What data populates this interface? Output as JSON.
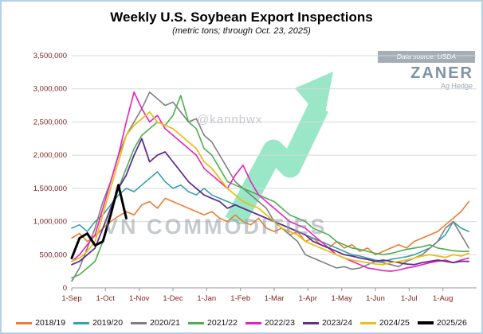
{
  "header": {
    "title": "Weekly U.S. Soybean Export Inspections",
    "subtitle": "(metric tons; through Oct. 23, 2025)"
  },
  "branding": {
    "data_source": "Data source: USDA",
    "logo": "ZANER",
    "logo_sub": "Ag Hedge",
    "logo_color": "#7e93a6"
  },
  "watermarks": {
    "handle": "@kannbwx",
    "brand": "VN COMMODITIES",
    "arrow_color": "#35d08e"
  },
  "chart_data": {
    "type": "line",
    "title": "Weekly U.S. Soybean Export Inspections",
    "subtitle": "(metric tons; through Oct. 23, 2025)",
    "xlabel": "",
    "ylabel": "metric tons",
    "ylim": [
      0,
      3500000
    ],
    "y_tick_step": 500000,
    "grid": true,
    "legend_position": "bottom",
    "axis_label_color": "#7f1f1f",
    "grid_color": "#d9d9d9",
    "x_weeks_total": 52,
    "x_tick_labels": [
      "1-Sep",
      "1-Oct",
      "1-Nov",
      "1-Dec",
      "1-Jan",
      "1-Feb",
      "1-Mar",
      "1-Apr",
      "1-May",
      "1-Jun",
      "1-Jul",
      "1-Aug"
    ],
    "x_tick_positions": [
      0,
      4.33,
      8.67,
      13,
      17.33,
      21.67,
      26,
      30.33,
      34.67,
      39,
      43.33,
      47.67
    ],
    "series": [
      {
        "name": "2018/19",
        "color": "#ED7D31",
        "width": 1.6,
        "values": [
          750000,
          820000,
          700000,
          780000,
          900000,
          1000000,
          1080000,
          1150000,
          1100000,
          1250000,
          1300000,
          1200000,
          1350000,
          1300000,
          1250000,
          1200000,
          1150000,
          1100000,
          1150000,
          1050000,
          1000000,
          1100000,
          1000000,
          950000,
          1050000,
          900000,
          850000,
          900000,
          800000,
          850000,
          700000,
          750000,
          650000,
          600000,
          700000,
          600000,
          650000,
          550000,
          600000,
          500000,
          550000,
          600000,
          650000,
          600000,
          700000,
          750000,
          800000,
          850000,
          950000,
          1050000,
          1150000,
          1300000
        ]
      },
      {
        "name": "2019/20",
        "color": "#35A0AE",
        "width": 1.6,
        "values": [
          900000,
          950000,
          850000,
          1000000,
          1100000,
          1250000,
          1400000,
          1500000,
          1450000,
          1550000,
          1650000,
          1750000,
          1600000,
          1500000,
          1550000,
          1450000,
          1400000,
          1500000,
          1400000,
          1350000,
          1300000,
          1250000,
          1200000,
          1150000,
          1100000,
          1050000,
          1000000,
          950000,
          900000,
          850000,
          800000,
          750000,
          700000,
          650000,
          600000,
          550000,
          500000,
          480000,
          450000,
          420000,
          400000,
          430000,
          450000,
          470000,
          500000,
          550000,
          600000,
          700000,
          800000,
          1000000,
          900000,
          850000
        ]
      },
      {
        "name": "2020/21",
        "color": "#7F7F7F",
        "width": 1.6,
        "values": [
          100000,
          300000,
          600000,
          900000,
          1300000,
          1600000,
          2000000,
          2300000,
          2500000,
          2700000,
          2950000,
          2850000,
          2750000,
          2800000,
          2650000,
          2500000,
          2550000,
          2300000,
          2200000,
          2000000,
          1800000,
          1600000,
          1500000,
          1400000,
          1300000,
          1200000,
          1000000,
          900000,
          800000,
          700000,
          500000,
          450000,
          400000,
          350000,
          300000,
          320000,
          280000,
          300000,
          350000,
          400000,
          380000,
          350000,
          320000,
          400000,
          450000,
          500000,
          600000,
          700000,
          900000,
          1000000,
          800000,
          600000
        ]
      },
      {
        "name": "2021/22",
        "color": "#4CAF50",
        "width": 1.6,
        "values": [
          150000,
          200000,
          300000,
          400000,
          700000,
          1100000,
          1500000,
          1800000,
          2100000,
          2300000,
          2400000,
          2500000,
          2450000,
          2600000,
          2900000,
          2500000,
          2400000,
          2100000,
          2000000,
          1800000,
          1600000,
          1550000,
          1500000,
          1450000,
          1400000,
          1350000,
          1300000,
          1200000,
          1100000,
          1050000,
          1000000,
          900000,
          850000,
          800000,
          700000,
          650000,
          600000,
          580000,
          550000,
          520000,
          500000,
          520000,
          550000,
          580000,
          600000,
          620000,
          650000,
          600000,
          580000,
          560000,
          550000,
          550000
        ]
      },
      {
        "name": "2022/23",
        "color": "#E91FC0",
        "width": 1.6,
        "values": [
          400000,
          500000,
          650000,
          800000,
          1200000,
          1600000,
          2000000,
          2500000,
          2950000,
          2700000,
          2500000,
          2600000,
          2400000,
          2300000,
          2200000,
          2100000,
          2000000,
          1800000,
          1700000,
          1600000,
          1500000,
          1700000,
          1850000,
          1600000,
          1400000,
          1300000,
          1200000,
          1100000,
          1000000,
          950000,
          900000,
          800000,
          700000,
          600000,
          500000,
          450000,
          400000,
          350000,
          300000,
          280000,
          260000,
          250000,
          270000,
          300000,
          320000,
          350000,
          380000,
          400000,
          420000,
          380000,
          420000,
          450000
        ]
      },
      {
        "name": "2023/24",
        "color": "#5F2E8E",
        "width": 1.8,
        "values": [
          350000,
          400000,
          500000,
          600000,
          900000,
          1200000,
          1500000,
          1700000,
          2000000,
          2250000,
          1900000,
          2000000,
          2050000,
          1900000,
          1750000,
          1600000,
          1500000,
          1400000,
          1350000,
          1300000,
          1200000,
          1250000,
          1200000,
          1150000,
          1100000,
          1050000,
          1000000,
          950000,
          900000,
          850000,
          800000,
          700000,
          650000,
          600000,
          550000,
          500000,
          480000,
          450000,
          430000,
          400000,
          420000,
          400000,
          380000,
          360000,
          350000,
          380000,
          400000,
          420000,
          400000,
          380000,
          400000,
          400000
        ]
      },
      {
        "name": "2024/25",
        "color": "#E6C117",
        "width": 1.8,
        "values": [
          400000,
          450000,
          550000,
          700000,
          1100000,
          1500000,
          1900000,
          2300000,
          2450000,
          2550000,
          2650000,
          2500000,
          2450000,
          2400000,
          2300000,
          2200000,
          2100000,
          1900000,
          1800000,
          1650000,
          1500000,
          1400000,
          1300000,
          1250000,
          1200000,
          1100000,
          1000000,
          900000,
          850000,
          800000,
          700000,
          650000,
          600000,
          550000,
          500000,
          450000,
          420000,
          400000,
          380000,
          360000,
          350000,
          380000,
          400000,
          420000,
          450000,
          480000,
          500000,
          480000,
          460000,
          500000,
          480000,
          520000
        ]
      },
      {
        "name": "2025/26",
        "color": "#000000",
        "width": 3,
        "values": [
          450000,
          750000,
          820000,
          640000,
          700000,
          1100000,
          1550000,
          1050000
        ]
      }
    ]
  }
}
